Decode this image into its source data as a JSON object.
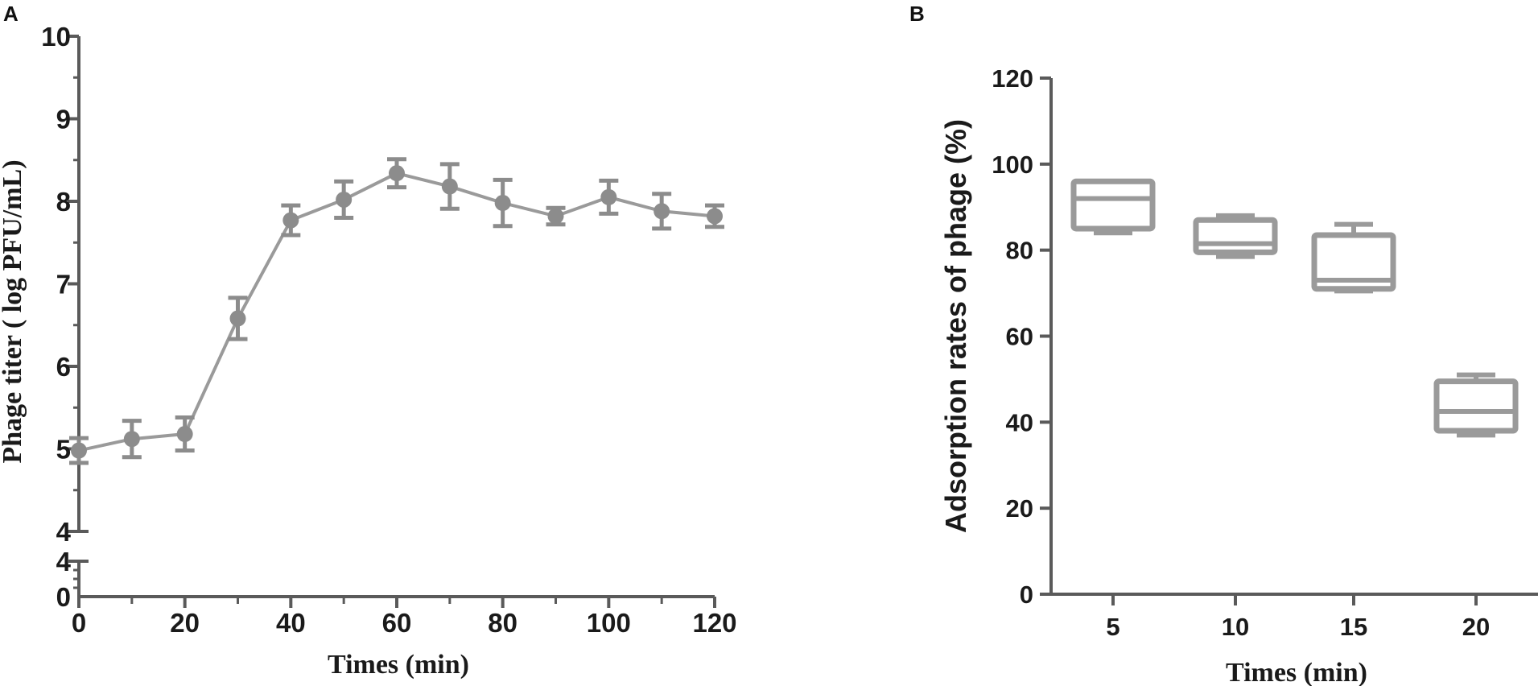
{
  "panels": {
    "a_label": "A",
    "b_label": "B"
  },
  "colors": {
    "series": "#8c8c8c",
    "axis": "#5a5a5a"
  },
  "chart_data": [
    {
      "type": "line",
      "panel": "A",
      "title": "",
      "xlabel": "Times (min)",
      "ylabel": "Phage titer ( log PFU/mL)",
      "xlim": [
        0,
        120
      ],
      "ylim": [
        4,
        10
      ],
      "y_axis_break": true,
      "y_lower_segment_ticks": [
        "0",
        "4"
      ],
      "x_ticks": [
        "0",
        "20",
        "40",
        "60",
        "80",
        "100",
        "120"
      ],
      "y_ticks": [
        "4",
        "5",
        "6",
        "7",
        "8",
        "9",
        "10"
      ],
      "series": [
        {
          "x": [
            0,
            10,
            20,
            30,
            40,
            50,
            60,
            70,
            80,
            90,
            100,
            110,
            120
          ],
          "y": [
            4.98,
            5.12,
            5.18,
            6.58,
            7.77,
            8.02,
            8.34,
            8.18,
            7.98,
            7.82,
            8.05,
            7.88,
            7.82
          ],
          "error": [
            0.15,
            0.22,
            0.2,
            0.25,
            0.18,
            0.22,
            0.17,
            0.27,
            0.28,
            0.1,
            0.2,
            0.21,
            0.13
          ]
        }
      ],
      "grid": false
    },
    {
      "type": "box",
      "panel": "B",
      "title": "",
      "xlabel": "Times (min)",
      "ylabel": "Adsorption rates of phage (%)",
      "categories": [
        "5",
        "10",
        "15",
        "20"
      ],
      "ylim": [
        0,
        120
      ],
      "y_ticks": [
        "0",
        "20",
        "40",
        "60",
        "80",
        "100",
        "120"
      ],
      "boxes": [
        {
          "min": 84,
          "q1": 85,
          "median": 92,
          "q3": 96,
          "max": 96
        },
        {
          "min": 78.5,
          "q1": 79.5,
          "median": 81.5,
          "q3": 87,
          "max": 88
        },
        {
          "min": 70.5,
          "q1": 71,
          "median": 73,
          "q3": 83.5,
          "max": 86
        },
        {
          "min": 37,
          "q1": 38,
          "median": 42.5,
          "q3": 49.5,
          "max": 51
        }
      ],
      "grid": false
    }
  ]
}
